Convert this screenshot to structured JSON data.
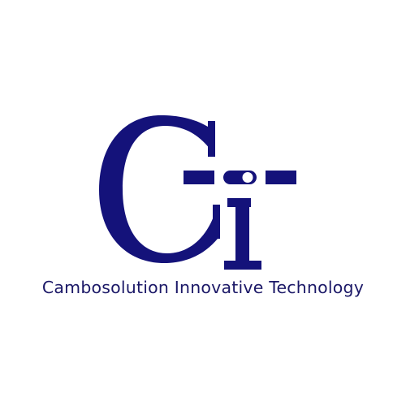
{
  "logo": {
    "mark_letters": "Ci",
    "company_name": "Cambosolution Innovative Technology",
    "primary_color": "#14127a",
    "text_color": "#1b1867",
    "background_color": "#ffffff"
  }
}
